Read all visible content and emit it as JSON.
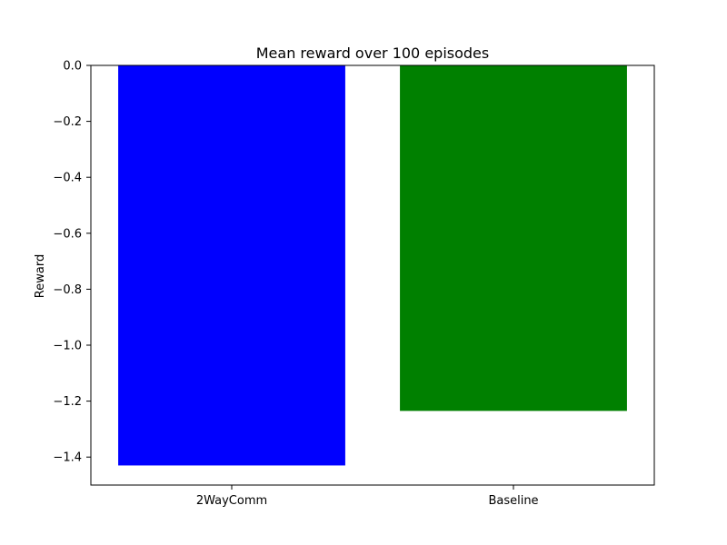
{
  "chart_data": {
    "type": "bar",
    "title": "Mean reward over 100 episodes",
    "xlabel": "",
    "ylabel": "Reward",
    "categories": [
      "2WayComm",
      "Baseline"
    ],
    "values": [
      -1.43,
      -1.235
    ],
    "colors": [
      "#0000ff",
      "#008000"
    ],
    "ylim": [
      -1.5,
      0.0
    ],
    "yticks": [
      0.0,
      -0.2,
      -0.4,
      -0.6,
      -0.8,
      -1.0,
      -1.2,
      -1.4
    ],
    "ytick_labels": [
      "0.0",
      "−0.2",
      "−0.4",
      "−0.6",
      "−0.8",
      "−1.0",
      "−1.2",
      "−1.4"
    ],
    "grid": false,
    "legend": "none"
  }
}
